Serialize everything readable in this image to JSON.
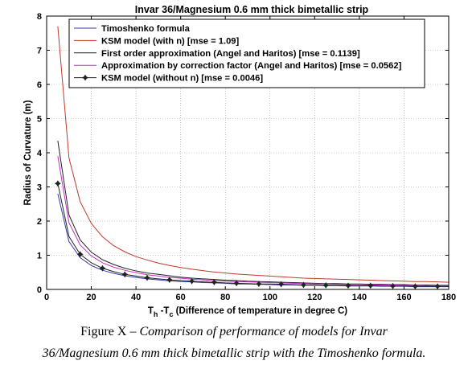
{
  "chart_data": {
    "type": "line",
    "title": "Invar 36/Magnesium 0.6 mm thick bimetallic strip",
    "ylabel": "Radius of Curvature (m)",
    "xlabel_parts": {
      "t": "T",
      "h": "h",
      "sep": " -T",
      "c": "c",
      "rest": " (Difference of temperature in degree C)"
    },
    "xlim": [
      0,
      180
    ],
    "ylim": [
      0,
      8
    ],
    "xticks": [
      "0",
      "20",
      "40",
      "60",
      "80",
      "100",
      "120",
      "140",
      "160",
      "180"
    ],
    "yticks": [
      "0",
      "1",
      "2",
      "3",
      "4",
      "5",
      "6",
      "7",
      "8"
    ],
    "grid": true,
    "legend_position": "top",
    "x": [
      5,
      10,
      15,
      20,
      25,
      30,
      35,
      40,
      45,
      50,
      55,
      60,
      65,
      70,
      75,
      80,
      85,
      90,
      95,
      100,
      105,
      110,
      115,
      120,
      125,
      130,
      135,
      140,
      145,
      150,
      155,
      160,
      165,
      170,
      175,
      180
    ],
    "series": [
      {
        "name": "Timoshenko formula",
        "color": "#3a3aa8",
        "marker": "none",
        "values": [
          2.8,
          1.4,
          0.93,
          0.7,
          0.56,
          0.47,
          0.4,
          0.35,
          0.31,
          0.28,
          0.25,
          0.23,
          0.22,
          0.2,
          0.19,
          0.18,
          0.16,
          0.16,
          0.15,
          0.14,
          0.13,
          0.13,
          0.12,
          0.12,
          0.11,
          0.11,
          0.1,
          0.1,
          0.1,
          0.09,
          0.09,
          0.09,
          0.08,
          0.08,
          0.08,
          0.08
        ]
      },
      {
        "name": "KSM model (with n) [mse = 1.09]",
        "color": "#c0392b",
        "marker": "none",
        "values": [
          7.7,
          3.85,
          2.57,
          1.93,
          1.54,
          1.28,
          1.1,
          0.96,
          0.86,
          0.77,
          0.7,
          0.64,
          0.59,
          0.55,
          0.51,
          0.48,
          0.45,
          0.43,
          0.41,
          0.39,
          0.37,
          0.35,
          0.33,
          0.32,
          0.31,
          0.3,
          0.29,
          0.28,
          0.27,
          0.26,
          0.25,
          0.24,
          0.23,
          0.23,
          0.22,
          0.21
        ]
      },
      {
        "name": "First order approximation (Angel and Haritos) [mse = 0.1139]",
        "color": "#222222",
        "marker": "none",
        "values": [
          4.35,
          2.18,
          1.45,
          1.09,
          0.87,
          0.73,
          0.62,
          0.54,
          0.48,
          0.44,
          0.4,
          0.36,
          0.33,
          0.31,
          0.29,
          0.27,
          0.26,
          0.24,
          0.23,
          0.22,
          0.21,
          0.2,
          0.19,
          0.18,
          0.17,
          0.17,
          0.16,
          0.16,
          0.15,
          0.15,
          0.14,
          0.14,
          0.13,
          0.13,
          0.12,
          0.12
        ]
      },
      {
        "name": "Approximation by correction factor (Angel and Haritos) [mse = 0.0562]",
        "color": "#c030c0",
        "marker": "none",
        "values": [
          3.9,
          1.95,
          1.3,
          0.98,
          0.78,
          0.65,
          0.56,
          0.49,
          0.43,
          0.39,
          0.35,
          0.33,
          0.3,
          0.28,
          0.26,
          0.24,
          0.23,
          0.22,
          0.21,
          0.2,
          0.19,
          0.18,
          0.17,
          0.16,
          0.16,
          0.15,
          0.14,
          0.14,
          0.13,
          0.13,
          0.13,
          0.12,
          0.12,
          0.11,
          0.11,
          0.11
        ]
      },
      {
        "name": "KSM model (without n) [mse = 0.0046]",
        "color": "#222222",
        "marker": "star",
        "values": [
          3.1,
          1.55,
          1.03,
          0.78,
          0.62,
          0.52,
          0.44,
          0.39,
          0.34,
          0.31,
          0.28,
          0.26,
          0.24,
          0.22,
          0.21,
          0.19,
          0.18,
          0.17,
          0.16,
          0.16,
          0.15,
          0.14,
          0.13,
          0.13,
          0.12,
          0.12,
          0.11,
          0.11,
          0.11,
          0.1,
          0.1,
          0.1,
          0.09,
          0.09,
          0.09,
          0.09
        ]
      }
    ]
  },
  "caption": {
    "prefix": "Figure X – ",
    "line1_italic": "Comparison of performance of models for Invar",
    "line2_italic": "36/Magnesium 0.6 mm thick bimetallic strip with the Timoshenko formula."
  }
}
